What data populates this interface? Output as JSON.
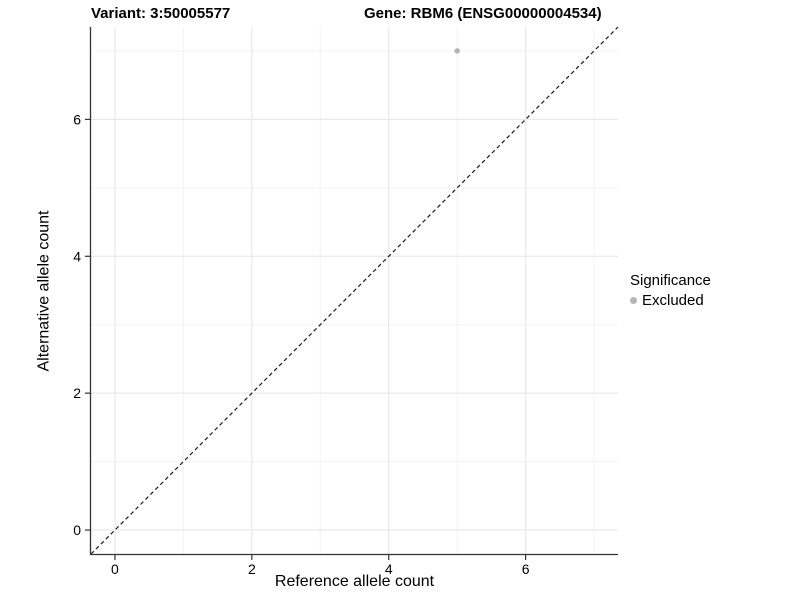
{
  "titles": {
    "variant": "Variant: 3:50005577",
    "gene": "Gene: RBM6 (ENSG00000004534)"
  },
  "legend": {
    "title": "Significance",
    "items": [
      {
        "label": "Excluded",
        "color": "#b5b5b5"
      }
    ]
  },
  "chart_data": {
    "type": "scatter",
    "title": "Variant: 3:50005577  Gene: RBM6 (ENSG00000004534)",
    "xlabel": "Reference allele count",
    "ylabel": "Alternative allele count",
    "xlim": [
      -0.35,
      7.35
    ],
    "ylim": [
      -0.35,
      7.35
    ],
    "x_ticks": [
      0,
      2,
      4,
      6
    ],
    "y_ticks": [
      0,
      2,
      4,
      6
    ],
    "x_minor_ticks": [
      1,
      3,
      5,
      7
    ],
    "y_minor_ticks": [
      1,
      3,
      5,
      7
    ],
    "grid": true,
    "legend_position": "right",
    "series": [
      {
        "name": "Excluded",
        "points": [
          {
            "x": 5,
            "y": 7
          }
        ],
        "color": "#b5b5b5"
      }
    ],
    "reference_line": {
      "kind": "identity",
      "style": "dashed",
      "color": "#1a1a1a"
    },
    "colors": {
      "major_grid": "#e5e5e5",
      "minor_grid": "#f3f3f3",
      "axis": "#333333",
      "background": "#ffffff"
    }
  }
}
